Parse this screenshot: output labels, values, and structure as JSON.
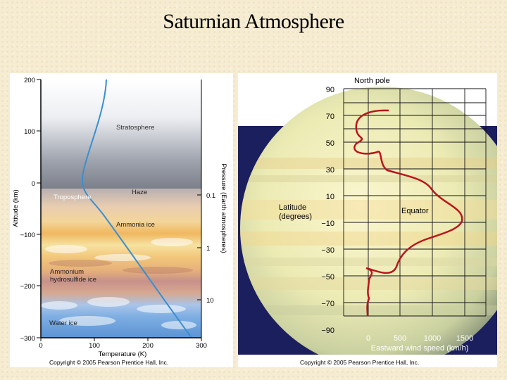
{
  "slide": {
    "title": "Saturnian Atmosphere"
  },
  "left_diagram": {
    "altitude_axis_label": "Altitude (km)",
    "altitude_ticks": [
      "200",
      "100",
      "0",
      "−100",
      "−200",
      "−300"
    ],
    "pressure_axis_label": "Pressure (Earth atmospheres)",
    "pressure_ticks": [
      "0.1",
      "1",
      "10"
    ],
    "temperature_axis_label": "Temperature (K)",
    "temperature_ticks": [
      "0",
      "100",
      "200",
      "300"
    ],
    "layers": {
      "stratosphere": "Stratosphere",
      "troposphere": "Troposphere",
      "haze": "Haze",
      "ammonia_ice": "Ammonia ice",
      "ammonium_line1": "Ammonium",
      "ammonium_line2": "hydrosulfide ice",
      "water_ice": "Water ice"
    },
    "copyright": "Copyright © 2005 Pearson Prentice Hall, Inc.",
    "colors": {
      "temperature_curve": "#3a8fd0"
    }
  },
  "right_diagram": {
    "header": "North pole",
    "latitude_ticks": [
      "90",
      "70",
      "50",
      "30",
      "10",
      "−10",
      "−30",
      "−50",
      "−70",
      "−90"
    ],
    "latitude_label_line1": "Latitude",
    "latitude_label_line2": "(degrees)",
    "equator_label": "Equator",
    "wind_ticks": [
      "0",
      "500",
      "1000",
      "1500"
    ],
    "wind_axis_label": "Eastward wind speed (km/h)",
    "copyright": "Copyright © 2005 Pearson Prentice Hall, Inc.",
    "colors": {
      "wind_curve": "#b8161c",
      "space": "#1c1f5e"
    }
  }
}
